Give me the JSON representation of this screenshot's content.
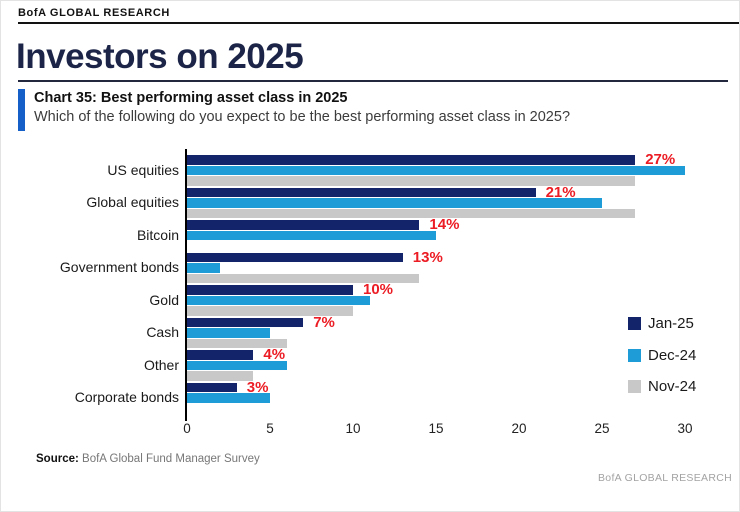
{
  "header": {
    "brand": "BofA GLOBAL RESEARCH",
    "page_title": "Investors on 2025"
  },
  "chart_header": {
    "title": "Chart 35: Best performing asset class in 2025",
    "subtitle": "Which of the following do you expect to be the best performing asset class in 2025?"
  },
  "theme": {
    "accent_blue": "#155fc9",
    "title_navy": "#1c2547",
    "label_red": "#ec1c24"
  },
  "chart_data": {
    "type": "bar",
    "orientation": "horizontal",
    "title": "Chart 35: Best performing asset class in 2025",
    "categories": [
      "US equities",
      "Global equities",
      "Bitcoin",
      "Government bonds",
      "Gold",
      "Cash",
      "Other",
      "Corporate bonds"
    ],
    "series": [
      {
        "name": "Jan-25",
        "color": "#14246b",
        "values": [
          27,
          21,
          14,
          13,
          10,
          7,
          4,
          3
        ]
      },
      {
        "name": "Dec-24",
        "color": "#1e9cd7",
        "values": [
          30,
          25,
          15,
          2,
          11,
          5,
          6,
          5
        ]
      },
      {
        "name": "Nov-24",
        "color": "#c8c8c8",
        "values": [
          27,
          27,
          null,
          14,
          10,
          6,
          4,
          null
        ]
      }
    ],
    "data_labels": {
      "series": "Jan-25",
      "color": "#ec1c24",
      "texts": [
        "27%",
        "21%",
        "14%",
        "13%",
        "10%",
        "7%",
        "4%",
        "3%"
      ]
    },
    "x_ticks": [
      0,
      5,
      10,
      15,
      20,
      25,
      30
    ],
    "xlim": [
      0,
      31
    ],
    "xlabel": "",
    "ylabel": "",
    "grid": false,
    "legend_position": "right-middle"
  },
  "footer": {
    "source_label": "Source:",
    "source_text": " BofA Global Fund Manager Survey",
    "brand": "BofA GLOBAL RESEARCH"
  }
}
